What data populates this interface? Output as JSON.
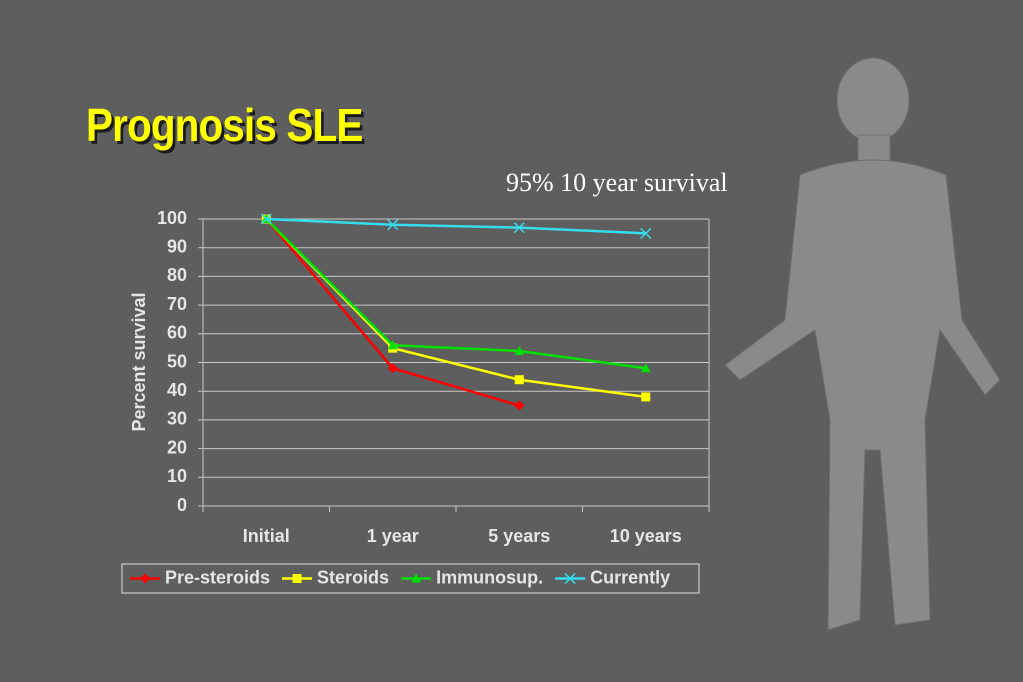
{
  "chart_data": {
    "type": "line",
    "title": "Prognosis SLE",
    "subtitle": "95% 10 year survival",
    "y_label": "Percent survival",
    "categories": [
      "Initial",
      "1 year",
      "5 years",
      "10 years"
    ],
    "series": [
      {
        "name": "Pre-steroids",
        "color": "#ff0000",
        "marker": "diamond",
        "values": [
          100,
          48,
          35,
          null
        ]
      },
      {
        "name": "Steroids",
        "color": "#ffff00",
        "marker": "square",
        "values": [
          100,
          55,
          44,
          38
        ]
      },
      {
        "name": "Immunosup.",
        "color": "#00e000",
        "marker": "triangle",
        "values": [
          100,
          56,
          54,
          48
        ]
      },
      {
        "name": "Currently",
        "color": "#33ddee",
        "marker": "x",
        "values": [
          100,
          98,
          97,
          95
        ]
      }
    ],
    "ylim": [
      0,
      100
    ],
    "yticks": [
      0,
      10,
      20,
      30,
      40,
      50,
      60,
      70,
      80,
      90,
      100
    ],
    "grid": true,
    "legend": "bottom"
  }
}
